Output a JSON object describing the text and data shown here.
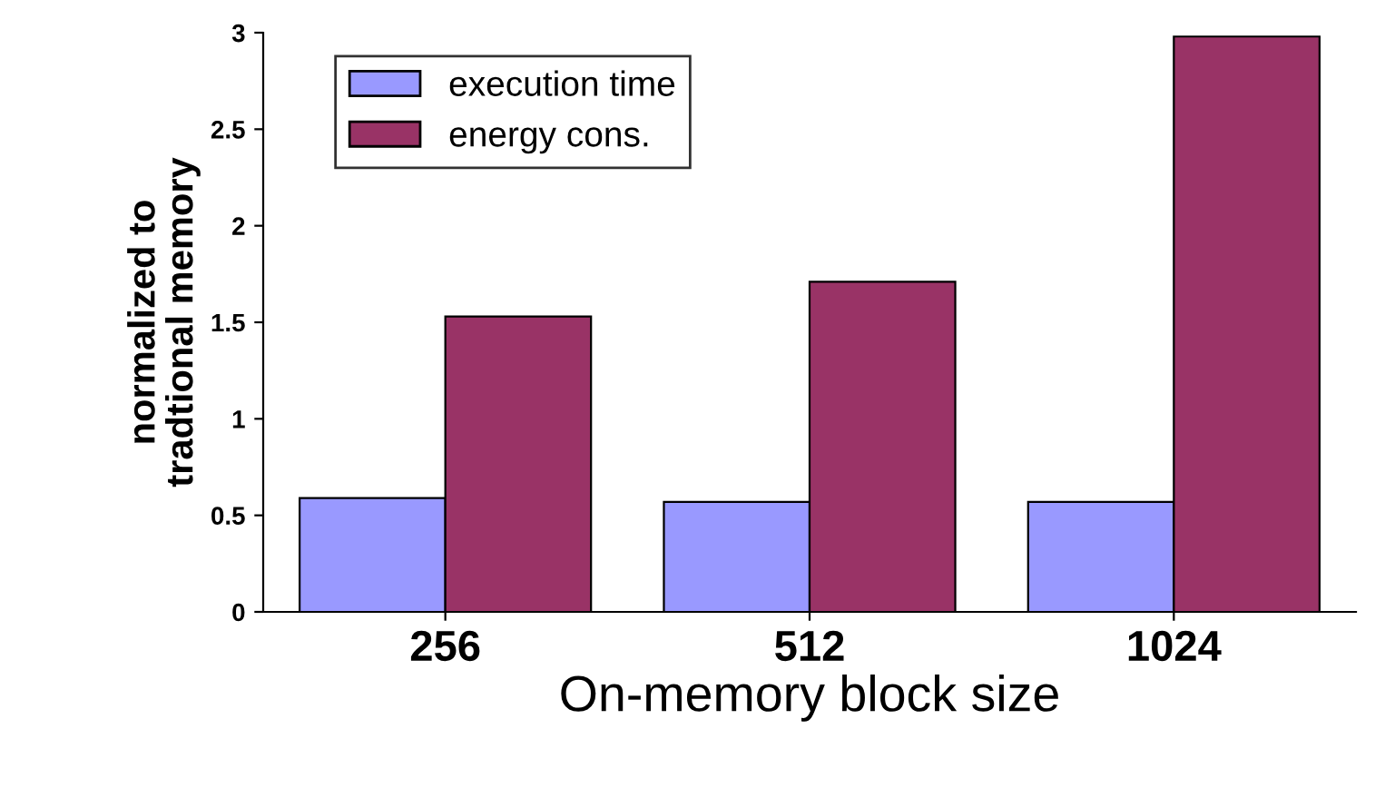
{
  "chart_data": {
    "type": "bar",
    "xlabel": "On-memory block size",
    "ylabel": "normalized to\ntradtional memory",
    "categories": [
      "256",
      "512",
      "1024"
    ],
    "series": [
      {
        "name": "execution time",
        "color": "#9999ff",
        "values": [
          0.59,
          0.57,
          0.57
        ]
      },
      {
        "name": "energy cons.",
        "color": "#993366",
        "values": [
          1.53,
          1.71,
          2.98
        ]
      }
    ],
    "ylim": [
      0,
      3
    ],
    "yticks": [
      0,
      0.5,
      1,
      1.5,
      2,
      2.5,
      3
    ],
    "legend": "top left",
    "grid": false
  }
}
